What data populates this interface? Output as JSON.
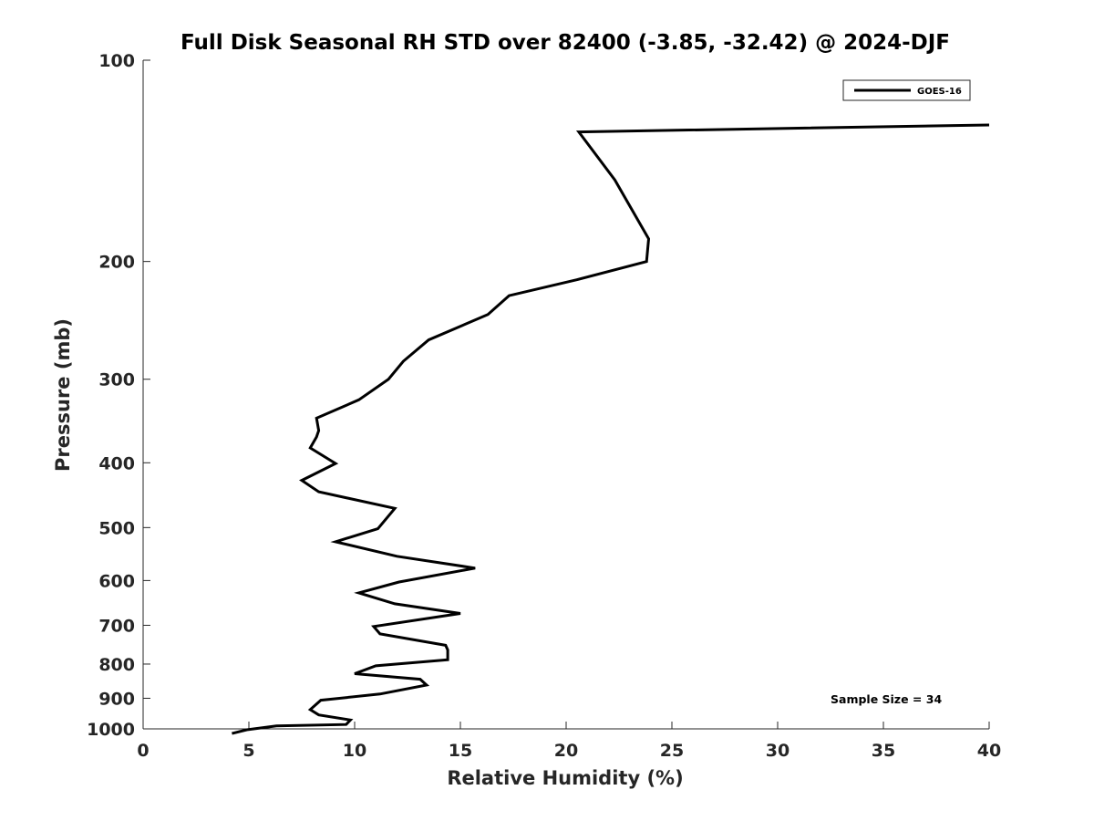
{
  "chart_data": {
    "type": "line",
    "title": "Full Disk Seasonal RH STD over 82400 (-3.85, -32.42) @ 2024-DJF",
    "xlabel": "Relative Humidity (%)",
    "ylabel": "Pressure (mb)",
    "xlim": [
      0,
      40
    ],
    "ylim": [
      1000,
      100
    ],
    "yscale": "log",
    "y_reversed": true,
    "xticks": [
      0,
      5,
      10,
      15,
      20,
      25,
      30,
      35,
      40
    ],
    "yticks": [
      100,
      200,
      300,
      400,
      500,
      600,
      700,
      800,
      900,
      1000
    ],
    "grid": false,
    "legend_position": "top-right",
    "series": [
      {
        "name": "GOES-16",
        "color": "#000000",
        "x": [
          40.0,
          20.6,
          22.3,
          23.9,
          23.8,
          20.5,
          17.3,
          16.3,
          13.5,
          12.3,
          11.6,
          10.2,
          8.2,
          8.3,
          8.2,
          7.9,
          9.1,
          7.5,
          8.3,
          11.9,
          11.1,
          9.1,
          12.0,
          15.7,
          12.1,
          10.2,
          11.9,
          15.0,
          10.9,
          11.2,
          14.3,
          14.4,
          14.4,
          11.0,
          10.0,
          13.1,
          13.4,
          11.2,
          8.4,
          7.9,
          8.3,
          9.8,
          9.6,
          6.3,
          4.9,
          4.2
        ],
        "y": [
          125,
          128,
          151,
          185,
          200,
          213,
          225,
          240,
          262,
          282,
          300,
          322,
          343,
          358,
          366,
          380,
          401,
          425,
          442,
          468,
          502,
          525,
          552,
          575,
          603,
          626,
          650,
          672,
          703,
          721,
          750,
          762,
          788,
          805,
          827,
          843,
          860,
          887,
          906,
          936,
          953,
          970,
          985,
          990,
          1003,
          1016
        ]
      }
    ],
    "annotations": [
      "Sample Size = 34"
    ]
  }
}
